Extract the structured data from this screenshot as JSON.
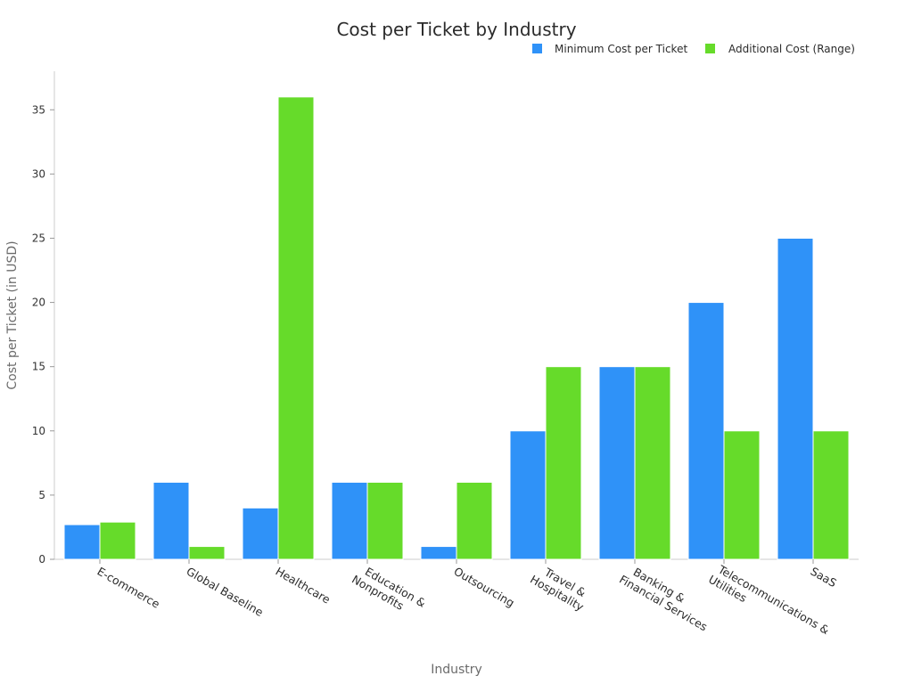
{
  "chart_data": {
    "type": "bar",
    "title": "Cost per Ticket by Industry",
    "xlabel": "Industry",
    "ylabel": "Cost per Ticket (in USD)",
    "ylim": [
      0,
      38
    ],
    "yticks": [
      0,
      5,
      10,
      15,
      20,
      25,
      30,
      35
    ],
    "legend_position": "top-right",
    "grid": false,
    "categories": [
      [
        "E-commerce"
      ],
      [
        "Global Baseline"
      ],
      [
        "Healthcare"
      ],
      [
        "Education &",
        "Nonprofits"
      ],
      [
        "Outsourcing"
      ],
      [
        "Travel &",
        "Hospitality"
      ],
      [
        "Banking &",
        "Financial Services"
      ],
      [
        "Telecommunications &",
        "Utilities"
      ],
      [
        "SaaS"
      ]
    ],
    "series": [
      {
        "name": "Minimum Cost per Ticket",
        "color": "#2f92f8",
        "values": [
          2.7,
          6,
          4,
          6,
          1,
          10,
          15,
          20,
          25
        ]
      },
      {
        "name": "Additional Cost (Range)",
        "color": "#66db2a",
        "values": [
          2.9,
          1,
          36,
          6,
          6,
          15,
          15,
          10,
          10
        ]
      }
    ]
  }
}
